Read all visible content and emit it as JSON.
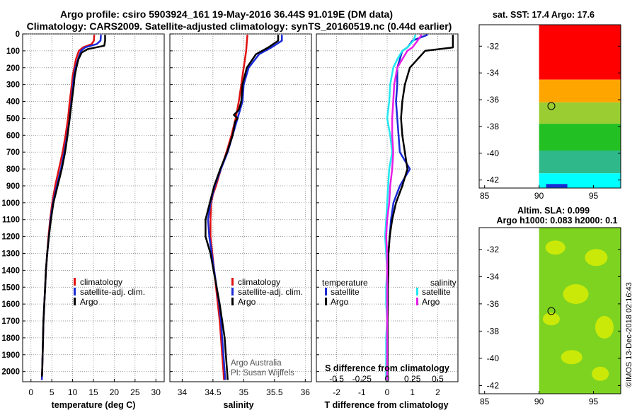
{
  "header": {
    "title_line1": "Argo profile: csiro 5903924_161 19-May-2016 36.44S 91.019E (DM data)",
    "title_line2": "Climatology: CARS2009. Satellite-adjusted climatology: synTS_20160519.nc (0.44d earlier)"
  },
  "credit": {
    "line1": "Argo Australia",
    "line2": "PI: Susan Wijffels",
    "side": "©IMOS 13-Dec-2018 02:16:43"
  },
  "colors": {
    "climatology": "#e01010",
    "satellite_adj": "#1a2ad6",
    "argo": "#000000",
    "s_satellite": "#22e6f0",
    "s_argo": "#e81ee8",
    "grid": "#777777",
    "sst_red": "#ff0000",
    "sst_orange": "#ffa500",
    "sst_green": "#22c022",
    "sst_teal": "#2fb98a",
    "sst_cyan": "#00ffff",
    "sla_green": "#7ed320",
    "sla_yellow": "#e6f000"
  },
  "depth_axis": {
    "label_ticks": [
      "0",
      "100",
      "200",
      "300",
      "400",
      "500",
      "600",
      "700",
      "800",
      "900",
      "1000",
      "1100",
      "1200",
      "1300",
      "1400",
      "1500",
      "1600",
      "1700",
      "1800",
      "1900",
      "2000"
    ]
  },
  "chart_data": [
    {
      "type": "line",
      "id": "temperature",
      "xlabel": "temperature (deg C)",
      "x_ticks": [
        "0",
        "5",
        "10",
        "15",
        "20",
        "25",
        "30"
      ],
      "xlim": [
        -2,
        32
      ],
      "ylim": [
        2060,
        0
      ],
      "legend": {
        "position": "bottom-center",
        "entries": [
          "climatology",
          "satellite-adj. clim.",
          "Argo"
        ]
      },
      "series": [
        {
          "name": "climatology",
          "color": "#e01010",
          "depth": [
            5,
            40,
            60,
            80,
            100,
            150,
            200,
            250,
            300,
            400,
            500,
            600,
            700,
            800,
            900,
            1000,
            1100,
            1200,
            1300,
            1400,
            1500,
            1600,
            1700,
            1800,
            1900,
            2000,
            2050
          ],
          "values": [
            15.2,
            15.1,
            14.6,
            12.5,
            11.5,
            10.8,
            10.4,
            10.0,
            9.8,
            9.3,
            8.9,
            8.3,
            7.6,
            6.7,
            5.8,
            5.1,
            4.6,
            4.2,
            3.9,
            3.6,
            3.4,
            3.2,
            3.0,
            2.9,
            2.8,
            2.7,
            2.6
          ]
        },
        {
          "name": "satellite-adj. clim.",
          "color": "#1a2ad6",
          "depth": [
            5,
            40,
            60,
            80,
            100,
            150,
            200,
            250,
            300,
            400,
            500,
            600,
            700,
            800,
            900,
            1000,
            1100,
            1200,
            1300,
            1400,
            1500,
            1600,
            1700,
            1800,
            1900,
            2000,
            2050
          ],
          "values": [
            16.8,
            16.7,
            15.8,
            13.0,
            12.0,
            11.3,
            10.7,
            10.3,
            10.1,
            9.7,
            9.3,
            8.7,
            8.0,
            7.2,
            6.2,
            5.3,
            4.7,
            4.3,
            3.9,
            3.6,
            3.4,
            3.2,
            3.0,
            2.9,
            2.8,
            2.7,
            2.6
          ]
        },
        {
          "name": "Argo",
          "color": "#000000",
          "depth": [
            5,
            40,
            70,
            90,
            110,
            150,
            200,
            250,
            300,
            400,
            500,
            600,
            700,
            800,
            900,
            1000,
            1100,
            1200,
            1300,
            1400,
            1500,
            1600,
            1700,
            1800,
            1900,
            2000,
            2030
          ],
          "values": [
            17.8,
            17.8,
            17.6,
            13.6,
            12.2,
            11.4,
            10.9,
            10.5,
            10.3,
            9.8,
            9.3,
            8.8,
            8.2,
            7.4,
            6.4,
            5.4,
            4.8,
            4.3,
            3.9,
            3.6,
            3.4,
            3.2,
            3.0,
            2.9,
            2.8,
            2.7,
            2.6
          ]
        }
      ]
    },
    {
      "type": "line",
      "id": "salinity",
      "xlabel": "salinity",
      "x_ticks": [
        "34",
        "34.5",
        "35",
        "35.5",
        "36"
      ],
      "xlim": [
        33.8,
        36.1
      ],
      "ylim": [
        2060,
        0
      ],
      "legend": {
        "position": "bottom-center",
        "entries": [
          "climatology",
          "satellite-adj. clim.",
          "Argo"
        ]
      },
      "series": [
        {
          "name": "climatology",
          "color": "#e01010",
          "depth": [
            5,
            50,
            100,
            150,
            200,
            300,
            400,
            500,
            600,
            700,
            800,
            900,
            950,
            1000,
            1100,
            1200,
            1300,
            1400,
            1500,
            1600,
            1700,
            1800,
            1900,
            2000,
            2050
          ],
          "values": [
            35.06,
            35.05,
            35.04,
            35.02,
            35.0,
            34.96,
            34.92,
            34.87,
            34.8,
            34.72,
            34.63,
            34.55,
            34.5,
            34.47,
            34.46,
            34.46,
            34.49,
            34.52,
            34.55,
            34.58,
            34.61,
            34.63,
            34.65,
            34.67,
            34.68
          ]
        },
        {
          "name": "satellite-adj. clim.",
          "color": "#1a2ad6",
          "depth": [
            5,
            40,
            80,
            120,
            200,
            300,
            400,
            500,
            600,
            700,
            800,
            900,
            1000,
            1100,
            1200,
            1300,
            1400,
            1500,
            1600,
            1700,
            1800,
            1900,
            2000,
            2050
          ],
          "values": [
            35.62,
            35.62,
            35.45,
            35.25,
            35.08,
            35.0,
            34.98,
            34.9,
            34.82,
            34.74,
            34.63,
            34.53,
            34.46,
            34.42,
            34.44,
            34.48,
            34.52,
            34.56,
            34.6,
            34.63,
            34.65,
            34.67,
            34.69,
            34.7
          ]
        },
        {
          "name": "Argo",
          "color": "#000000",
          "depth": [
            5,
            40,
            80,
            120,
            200,
            300,
            400,
            450,
            480,
            500,
            520,
            600,
            700,
            800,
            900,
            1000,
            1100,
            1200,
            1300,
            1400,
            1500,
            1600,
            1700,
            1800,
            1900,
            2000,
            2050
          ],
          "values": [
            35.56,
            35.56,
            35.4,
            35.2,
            35.05,
            34.98,
            34.96,
            34.92,
            34.84,
            34.9,
            34.86,
            34.82,
            34.73,
            34.62,
            34.52,
            34.45,
            34.38,
            34.38,
            34.46,
            34.51,
            34.56,
            34.61,
            34.65,
            34.69,
            34.71,
            34.73,
            34.74
          ]
        }
      ]
    },
    {
      "type": "line",
      "id": "difference",
      "xlabel": "T difference from climatology",
      "x_ticks": [
        "-2",
        "-1",
        "0",
        "1",
        "2"
      ],
      "xlim": [
        -2.8,
        2.8
      ],
      "ylim": [
        2060,
        0
      ],
      "secondary_axis": {
        "label": "S difference from climatology",
        "ticks": [
          "-0.5",
          "-0.25",
          "0",
          "0.25",
          "0.5"
        ]
      },
      "legend": {
        "position": "bottom",
        "left_title": "temperature",
        "right_title": "salinity",
        "entries": [
          "satellite",
          "Argo",
          "satellite",
          "Argo"
        ]
      },
      "series": [
        {
          "name": "satellite",
          "group": "temperature",
          "color": "#1a2ad6",
          "depth": [
            5,
            40,
            80,
            100,
            150,
            200,
            300,
            400,
            500,
            600,
            700,
            800,
            900,
            1000,
            1100,
            1200,
            1300,
            1400,
            1500,
            1600,
            1700,
            1800,
            1900,
            2000,
            2050
          ],
          "values": [
            1.6,
            1.0,
            0.8,
            0.6,
            0.5,
            0.4,
            0.4,
            0.35,
            0.4,
            0.45,
            0.5,
            0.9,
            0.5,
            0.25,
            0.15,
            0.1,
            0.05,
            0.05,
            0.02,
            0.02,
            0.0,
            0.0,
            0.0,
            0.0,
            0.0
          ]
        },
        {
          "name": "Argo",
          "group": "temperature",
          "color": "#000000",
          "depth": [
            5,
            40,
            80,
            100,
            150,
            200,
            300,
            400,
            500,
            600,
            700,
            800,
            900,
            1000,
            1100,
            1200,
            1300,
            1400,
            1500,
            1600,
            1700,
            1800,
            1900,
            2000,
            2030
          ],
          "values": [
            2.6,
            2.6,
            2.6,
            1.5,
            1.2,
            0.9,
            0.7,
            0.6,
            0.55,
            0.6,
            0.7,
            0.8,
            0.6,
            0.35,
            0.2,
            0.1,
            0.05,
            0.05,
            0.03,
            0.03,
            0.02,
            0.02,
            0.02,
            0.02,
            0.02
          ]
        },
        {
          "name": "satellite",
          "group": "salinity",
          "color": "#22e6f0",
          "depth": [
            5,
            40,
            80,
            100,
            150,
            200,
            300,
            400,
            500,
            600,
            700,
            800,
            900,
            1000,
            1100,
            1200,
            1300,
            1400,
            1500,
            1600,
            1700,
            1800,
            1900,
            2000,
            2050
          ],
          "values": [
            0.28,
            0.26,
            0.2,
            0.15,
            0.1,
            0.06,
            0.03,
            0.02,
            0.0,
            0.03,
            0.05,
            0.02,
            0.01,
            0.0,
            -0.01,
            -0.02,
            -0.01,
            0.0,
            -0.01,
            -0.01,
            0.0,
            -0.01,
            -0.01,
            -0.01,
            -0.01
          ]
        },
        {
          "name": "Argo",
          "group": "salinity",
          "color": "#e81ee8",
          "depth": [
            5,
            40,
            80,
            100,
            150,
            200,
            300,
            400,
            500,
            600,
            700,
            800,
            900,
            1000,
            1100,
            1200,
            1300,
            1400,
            1500,
            1600,
            1700,
            1800,
            1900,
            2000,
            2050
          ],
          "values": [
            0.34,
            0.3,
            0.25,
            0.2,
            0.15,
            0.1,
            0.07,
            0.06,
            0.05,
            0.05,
            0.06,
            0.05,
            0.03,
            0.02,
            0.0,
            -0.01,
            0.0,
            0.0,
            0.0,
            0.0,
            0.0,
            0.0,
            0.0,
            0.0,
            0.0
          ]
        }
      ]
    },
    {
      "type": "heatmap",
      "id": "sst-map",
      "title": "sat. SST: 17.4 Argo: 17.6",
      "x_ticks": [
        "85",
        "90",
        "95"
      ],
      "y_ticks": [
        "-32",
        "-34",
        "-36",
        "-38",
        "-40",
        "-42"
      ],
      "xlim": [
        84.5,
        97.5
      ],
      "ylim": [
        -42.6,
        -30.4
      ],
      "data_extent_lon": [
        90,
        97.5
      ],
      "zones": [
        {
          "from_lat": -30.4,
          "to_lat": -34.5,
          "color": "#ff0000"
        },
        {
          "from_lat": -34.5,
          "to_lat": -36.2,
          "color": "#ffa500"
        },
        {
          "from_lat": -36.2,
          "to_lat": -37.8,
          "color": "#9acd32"
        },
        {
          "from_lat": -37.8,
          "to_lat": -39.8,
          "color": "#22c022"
        },
        {
          "from_lat": -39.8,
          "to_lat": -41.5,
          "color": "#2fb98a"
        },
        {
          "from_lat": -41.5,
          "to_lat": -42.6,
          "color": "#00ffff"
        }
      ],
      "marker": {
        "lon": 91.019,
        "lat": -36.44
      }
    },
    {
      "type": "heatmap",
      "id": "sla-map",
      "title": "Altim. SLA: 0.099",
      "subtitle": "Argo h1000: 0.083 h2000: 0.1",
      "x_ticks": [
        "85",
        "90",
        "95"
      ],
      "y_ticks": [
        "-32",
        "-34",
        "-36",
        "-38",
        "-40",
        "-42"
      ],
      "xlim": [
        84.5,
        97.5
      ],
      "ylim": [
        -42.6,
        -30.4
      ],
      "data_extent_lon": [
        90,
        97.5
      ],
      "marker": {
        "lon": 91.019,
        "lat": -36.44
      }
    }
  ]
}
